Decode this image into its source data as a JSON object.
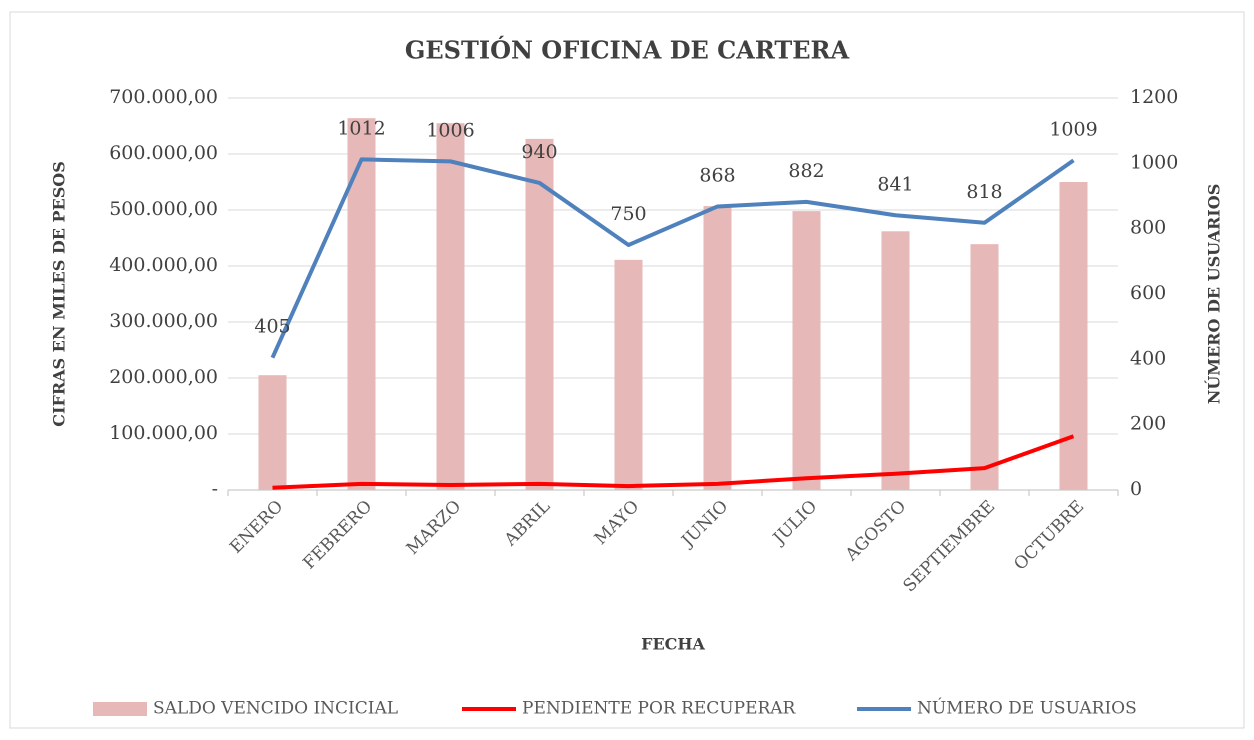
{
  "chart_data": {
    "type": "combo",
    "title": "GESTIÓN OFICINA DE CARTERA",
    "x_label": "FECHA",
    "y_label": "CIFRAS EN MILES DE PESOS",
    "y2_label": "NÚMERO DE USUARIOS",
    "categories": [
      "ENERO",
      "FEBRERO",
      "MARZO",
      "ABRIL",
      "MAYO",
      "JUNIO",
      "JULIO",
      "AGOSTO",
      "SEPTIEMBRE",
      "OCTUBRE"
    ],
    "ylim": [
      0,
      700000
    ],
    "yticks": [
      {
        "value": 0,
        "label": "-"
      },
      {
        "value": 100000,
        "label": "100.000,00"
      },
      {
        "value": 200000,
        "label": "200.000,00"
      },
      {
        "value": 300000,
        "label": "300.000,00"
      },
      {
        "value": 400000,
        "label": "400.000,00"
      },
      {
        "value": 500000,
        "label": "500.000,00"
      },
      {
        "value": 600000,
        "label": "600.000,00"
      },
      {
        "value": 700000,
        "label": "700.000,00"
      }
    ],
    "y2lim": [
      0,
      1200
    ],
    "y2ticks": [
      0,
      200,
      400,
      600,
      800,
      1000,
      1200
    ],
    "grid": true,
    "legend": "bottom",
    "series": [
      {
        "name": "SALDO VENCIDO INCICIAL",
        "kind": "bar",
        "color": "#e6b8b7",
        "values": [
          205000,
          664000,
          655000,
          627000,
          411000,
          507000,
          498000,
          462000,
          439000,
          550000
        ]
      },
      {
        "name": "PENDIENTE POR RECUPERAR",
        "kind": "line",
        "color": "#ff0000",
        "values": [
          4000,
          11000,
          9000,
          11000,
          7000,
          11000,
          21000,
          29000,
          39000,
          96000
        ]
      },
      {
        "name": "NÚMERO DE USUARIOS",
        "kind": "line",
        "color": "#4f81bd",
        "axis": "y2",
        "values": [
          405,
          1012,
          1006,
          940,
          750,
          868,
          882,
          841,
          818,
          1009
        ]
      }
    ]
  }
}
